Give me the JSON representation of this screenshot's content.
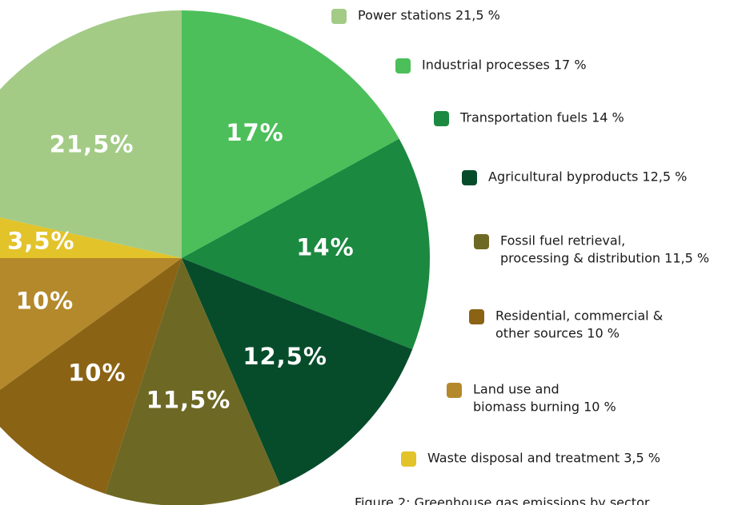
{
  "chart_data": {
    "type": "pie",
    "categories": [
      [
        "Power stations  21,5 %"
      ],
      [
        "Industrial processes  17 %"
      ],
      [
        "Transportation fuels 14 %"
      ],
      [
        "Agricultural byproducts 12,5 %"
      ],
      [
        "Fossil fuel retrieval,",
        "processing & distribution 11,5 %"
      ],
      [
        "Residential, commercial &",
        "other sources 10 %"
      ],
      [
        "Land use and",
        "biomass burning  10 %"
      ],
      [
        "Waste disposal and treatment 3,5 %"
      ]
    ],
    "values": [
      21.5,
      17,
      14,
      12.5,
      11.5,
      10,
      10,
      3.5
    ],
    "value_labels": [
      "21,5%",
      "17%",
      "14%",
      "12,5%",
      "11,5%",
      "10%",
      "10%",
      "3,5%"
    ],
    "colors": [
      "#a3cb86",
      "#4cbf5a",
      "#1b893f",
      "#064c2b",
      "#6d6924",
      "#8a6315",
      "#b4892b",
      "#e2c32a"
    ],
    "caption": "Figure 2: Greenhouse gas emissions by sector"
  }
}
